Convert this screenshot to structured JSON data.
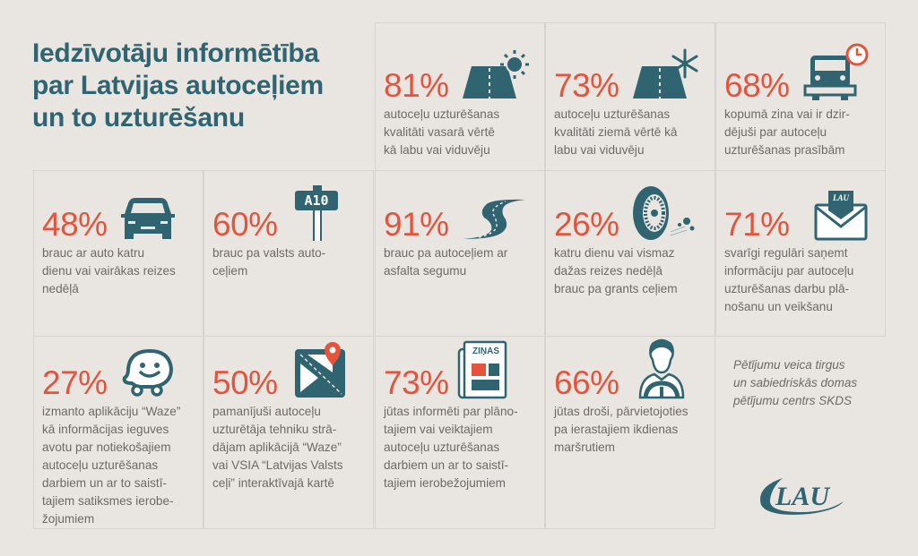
{
  "title": "Iedzīvotāju informētība\npar Latvijas autoceļiem\nun to uzturēšanu",
  "stats": [
    {
      "percent": "81%",
      "icon": "summer-road-icon",
      "text": "autoceļu uzturēšanas\nkvalitāti vasarā vērtē\nkā labu vai viduvēju"
    },
    {
      "percent": "73%",
      "icon": "winter-road-icon",
      "text": "autoceļu uzturēšanas\nkvalitāti ziemā vērtē kā\nlabu vai viduvēju"
    },
    {
      "percent": "68%",
      "icon": "snowplow-clock-icon",
      "text": "kopumā zina vai ir dzir-\ndējuši par autoceļu\nuzturēšanas prasībām"
    },
    {
      "percent": "48%",
      "icon": "car-icon",
      "text": "brauc ar auto katru\ndienu vai vairākas reizes\nnedēļā"
    },
    {
      "percent": "60%",
      "icon": "road-sign-icon",
      "sign_label": "A10",
      "text": "brauc pa valsts auto-\nceļiem"
    },
    {
      "percent": "91%",
      "icon": "winding-road-icon",
      "text": "brauc pa autoceļiem ar\nasfalta segumu"
    },
    {
      "percent": "26%",
      "icon": "tire-gravel-icon",
      "text": "katru dienu vai vismaz\ndažas reizes nedēļā\nbrauc pa grants ceļiem"
    },
    {
      "percent": "71%",
      "icon": "envelope-icon",
      "envelope_label": "LAU",
      "text": "svarīgi regulāri saņemt\ninformāciju par autoceļu\nuzturēšanas darbu plā-\nnošanu un veikšanu"
    },
    {
      "percent": "27%",
      "icon": "waze-icon",
      "text": "izmanto aplikāciju “Waze”\nkā informācijas ieguves\navotu par notiekošajiem\nautoceļu uzturēšanas\ndarbiem un ar to saistī-\ntajiem satiksmes ierobe-\nžojumiem"
    },
    {
      "percent": "50%",
      "icon": "map-pin-icon",
      "text": "pamanījuši autoceļu\nuzturētāja tehniku strā-\ndājam aplikācijā “Waze”\nvai VSIA “Latvijas Valsts\nceļi” interaktīvajā kartē"
    },
    {
      "percent": "73%",
      "icon": "newspaper-icon",
      "newspaper_label": "ZIŅAS",
      "text": "jūtas informēti par plāno-\ntajiem vai veiktajiem\nautoceļu uzturēšanas\ndarbiem un ar to saistī-\ntajiem ierobežojumiem"
    },
    {
      "percent": "66%",
      "icon": "driver-icon",
      "text": "jūtas droši, pārvietojoties\npa ierastajiem ikdienas\nmaršrutiem"
    }
  ],
  "note": "Pētījumu veica tirgus\nun sabiedriskās domas\npētījumu centrs SKDS",
  "logo": "LAU",
  "colors": {
    "accent": "#e5533d",
    "brand": "#2f6470",
    "background": "#e9e6e2",
    "text": "#6c6967"
  }
}
